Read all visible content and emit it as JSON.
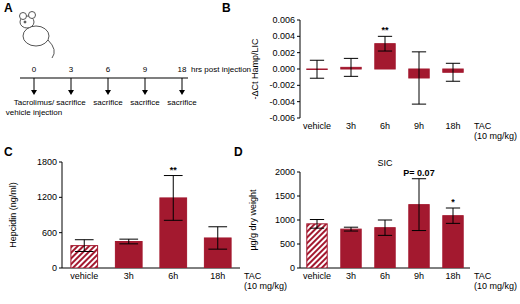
{
  "panel_labels": [
    "A",
    "B",
    "C",
    "D"
  ],
  "diagram": {
    "axis_label": "hrs post injection",
    "points": [
      {
        "time": "0",
        "label": [
          "Tacrolimus/",
          "vehicle injection"
        ]
      },
      {
        "time": "3",
        "label": [
          "sacrifice"
        ]
      },
      {
        "time": "6",
        "label": [
          "sacrifice"
        ]
      },
      {
        "time": "9",
        "label": [
          "sacrifice"
        ]
      },
      {
        "time": "18",
        "label": [
          "sacrifice"
        ]
      }
    ]
  },
  "chart_data": [
    {
      "type": "bar",
      "ylabel": "-ΔCt Hamp/LIC",
      "xlabel": [
        "TAC",
        "(10 mg/kg)"
      ],
      "categories": [
        "vehicle",
        "3h",
        "6h",
        "9h",
        "18h"
      ],
      "values": [
        -3e-05,
        0.0002,
        0.0031,
        -0.0011,
        -0.0004
      ],
      "errors": [
        0.0011,
        0.0011,
        0.0009,
        0.0032,
        0.0011
      ],
      "color": "#a3192f",
      "ylim": [
        -0.006,
        0.006
      ],
      "yticks": [
        -0.006,
        -0.004,
        -0.002,
        {
          "value": 0,
          "label": "0.000"
        },
        0.002,
        0.004,
        0.006
      ],
      "annotations": [
        {
          "text": "**",
          "category": "6h"
        }
      ]
    },
    {
      "type": "bar",
      "ylabel": "Hepcidin (ng/ml)",
      "xlabel": [
        "TAC",
        "(10 mg/kg)"
      ],
      "categories": [
        "vehicle",
        "3h",
        "6h",
        "18h"
      ],
      "values": [
        380,
        450,
        1190,
        510
      ],
      "errors": [
        100,
        40,
        380,
        190
      ],
      "color": "#a3192f",
      "ylim": [
        0,
        1800
      ],
      "yticks": [
        0,
        600,
        1200,
        1800
      ],
      "annotations": [
        {
          "text": "**",
          "category": "6h"
        }
      ]
    },
    {
      "type": "bar",
      "title": "SIC",
      "ylabel": "µg/g dry weight",
      "xlabel": [
        "TAC",
        "(10 mg/kg)"
      ],
      "categories": [
        "vehicle",
        "3h",
        "6h",
        "9h",
        "18h"
      ],
      "values": [
        920,
        810,
        840,
        1320,
        1090
      ],
      "errors": [
        90,
        40,
        160,
        540,
        160
      ],
      "color": "#a3192f",
      "ylim": [
        0,
        2000
      ],
      "yticks": [
        0,
        500,
        1000,
        1500,
        2000
      ],
      "annotations": [
        {
          "text": "P= 0.07",
          "category": "9h"
        },
        {
          "text": "*",
          "category": "18h"
        }
      ]
    }
  ]
}
